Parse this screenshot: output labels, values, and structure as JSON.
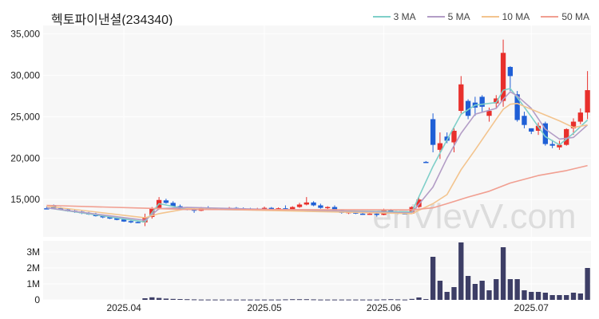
{
  "chart_data": {
    "type": "candlestick",
    "title": "헥토파이낸셜(234340)",
    "watermark": "enVlevV.com",
    "price_axis": {
      "ylim": [
        10500,
        36000
      ],
      "ticks": [
        15000,
        20000,
        25000,
        30000,
        35000
      ],
      "tick_labels": [
        "15,000",
        "20,000",
        "25,000",
        "30,000",
        "35,000"
      ]
    },
    "volume_axis": {
      "ylim": [
        0,
        3700000
      ],
      "ticks": [
        0,
        1000000,
        2000000,
        3000000
      ],
      "tick_labels": [
        "0",
        "1M",
        "2M",
        "3M"
      ]
    },
    "x_labels": [
      {
        "index": 11,
        "label": "2025.04"
      },
      {
        "index": 31,
        "label": "2025.05"
      },
      {
        "index": 48,
        "label": "2025.06"
      },
      {
        "index": 69,
        "label": "2025.07"
      }
    ],
    "legend": [
      {
        "name": "3 MA",
        "color": "#7fcfc9"
      },
      {
        "name": "5 MA",
        "color": "#b39dc6"
      },
      {
        "name": "10 MA",
        "color": "#f3c48e"
      },
      {
        "name": "50 MA",
        "color": "#f19f91"
      }
    ],
    "colors": {
      "up": "#e8302c",
      "down": "#1f5fd6",
      "volume": "#3d3e66",
      "plot_bg": "#f7f7f7",
      "grid": "#ffffff"
    },
    "candles": [
      [
        13950,
        14150,
        13850,
        13900
      ],
      [
        14300,
        14400,
        13900,
        13950
      ],
      [
        13950,
        14100,
        13700,
        13750
      ],
      [
        13800,
        13900,
        13550,
        13600
      ],
      [
        13650,
        13750,
        13400,
        13500
      ],
      [
        13550,
        13650,
        13250,
        13350
      ],
      [
        13400,
        13500,
        13150,
        13200
      ],
      [
        13250,
        13400,
        12950,
        13000
      ],
      [
        13050,
        13150,
        12750,
        12850
      ],
      [
        12900,
        13000,
        12650,
        12700
      ],
      [
        12750,
        12850,
        12500,
        12550
      ],
      [
        12600,
        12700,
        12300,
        12350
      ],
      [
        12400,
        12500,
        12150,
        12250
      ],
      [
        12300,
        12400,
        12150,
        12200
      ],
      [
        12250,
        13300,
        11800,
        12900
      ],
      [
        12900,
        14100,
        12700,
        13900
      ],
      [
        14000,
        15300,
        13800,
        14950
      ],
      [
        14900,
        15100,
        14500,
        14600
      ],
      [
        14600,
        14800,
        14100,
        14200
      ],
      [
        14200,
        14400,
        13800,
        13900
      ],
      [
        13900,
        14100,
        13700,
        13800
      ],
      [
        13800,
        14000,
        13400,
        13650
      ],
      [
        13650,
        14100,
        13600,
        14000
      ],
      [
        14000,
        14200,
        13800,
        13850
      ],
      [
        13850,
        14000,
        13750,
        13900
      ],
      [
        13900,
        14000,
        13750,
        13800
      ],
      [
        13800,
        14100,
        13750,
        14000
      ],
      [
        14000,
        14100,
        13900,
        13950
      ],
      [
        13950,
        14050,
        13850,
        13900
      ],
      [
        13900,
        14000,
        13750,
        13800
      ],
      [
        13800,
        14000,
        13700,
        13900
      ],
      [
        13900,
        14150,
        13800,
        14000
      ],
      [
        14000,
        14100,
        13800,
        13850
      ],
      [
        13850,
        14050,
        13700,
        13950
      ],
      [
        13950,
        14300,
        13600,
        13750
      ],
      [
        13750,
        14200,
        13650,
        14100
      ],
      [
        14100,
        14600,
        14000,
        14400
      ],
      [
        14400,
        15300,
        14300,
        14650
      ],
      [
        14650,
        14800,
        14200,
        14300
      ],
      [
        14300,
        14500,
        13900,
        14000
      ],
      [
        14000,
        14200,
        13850,
        14100
      ],
      [
        14100,
        14300,
        13500,
        13700
      ],
      [
        13700,
        13800,
        13300,
        13400
      ],
      [
        13400,
        13600,
        13250,
        13500
      ],
      [
        13500,
        13600,
        13250,
        13300
      ],
      [
        13300,
        13500,
        13150,
        13250
      ],
      [
        13250,
        13400,
        13150,
        13300
      ],
      [
        13300,
        13350,
        12950,
        13150
      ],
      [
        13150,
        13900,
        13100,
        13800
      ],
      [
        13800,
        13850,
        13400,
        13450
      ],
      [
        13450,
        13550,
        13250,
        13350
      ],
      [
        13350,
        13450,
        13200,
        13300
      ],
      [
        13300,
        14200,
        13250,
        14100
      ],
      [
        14100,
        15400,
        14000,
        15000
      ],
      [
        19550,
        19650,
        19450,
        19500
      ],
      [
        24700,
        25400,
        20700,
        21600
      ],
      [
        21000,
        23100,
        19900,
        21800
      ],
      [
        22600,
        23100,
        21800,
        22100
      ],
      [
        21900,
        23600,
        20700,
        23300
      ],
      [
        25700,
        29900,
        25400,
        28900
      ],
      [
        26900,
        27100,
        24700,
        25100
      ],
      [
        26700,
        27400,
        25100,
        26100
      ],
      [
        27400,
        27600,
        25600,
        26200
      ],
      [
        25100,
        26100,
        24400,
        25700
      ],
      [
        26600,
        27600,
        26100,
        27200
      ],
      [
        26900,
        34300,
        26200,
        32700
      ],
      [
        31000,
        31100,
        28100,
        29900
      ],
      [
        27700,
        28100,
        24400,
        24600
      ],
      [
        25100,
        25600,
        23600,
        24000
      ],
      [
        23600,
        23600,
        22900,
        23200
      ],
      [
        23300,
        24300,
        22800,
        23900
      ],
      [
        24200,
        24400,
        21500,
        21700
      ],
      [
        21700,
        22200,
        21200,
        21500
      ],
      [
        21300,
        22100,
        21000,
        21600
      ],
      [
        21600,
        23600,
        21500,
        23500
      ],
      [
        23600,
        24800,
        22800,
        24400
      ],
      [
        24400,
        26000,
        24100,
        25500
      ],
      [
        25500,
        30500,
        24700,
        28200
      ]
    ],
    "volume": [
      0,
      0,
      0,
      0,
      0,
      0,
      0,
      0,
      0,
      0,
      0,
      0,
      0,
      0,
      100000,
      160000,
      120000,
      80000,
      60000,
      50000,
      40000,
      30000,
      20000,
      20000,
      20000,
      20000,
      20000,
      20000,
      20000,
      20000,
      20000,
      20000,
      20000,
      20000,
      30000,
      40000,
      40000,
      40000,
      30000,
      20000,
      20000,
      20000,
      20000,
      20000,
      20000,
      20000,
      20000,
      20000,
      30000,
      40000,
      30000,
      20000,
      60000,
      150000,
      50000,
      2700000,
      1200000,
      500000,
      800000,
      3600000,
      1500000,
      1000000,
      1200000,
      600000,
      1300000,
      3300000,
      1300000,
      1300000,
      600000,
      500000,
      500000,
      450000,
      300000,
      300000,
      300000,
      450000,
      400000,
      2000000
    ],
    "ma": {
      "3 MA": [
        [
          0,
          14000
        ],
        [
          14,
          12300
        ],
        [
          16,
          14500
        ],
        [
          20,
          13850
        ],
        [
          52,
          13500
        ],
        [
          55,
          19000
        ],
        [
          57,
          22200
        ],
        [
          59,
          25300
        ],
        [
          61,
          26400
        ],
        [
          64,
          26700
        ],
        [
          65,
          28200
        ],
        [
          66,
          28400
        ],
        [
          67,
          27300
        ],
        [
          69,
          25000
        ],
        [
          71,
          22600
        ],
        [
          73,
          21600
        ],
        [
          75,
          23000
        ],
        [
          77,
          24600
        ]
      ],
      "5 MA": [
        [
          0,
          14000
        ],
        [
          14,
          12500
        ],
        [
          16,
          13900
        ],
        [
          20,
          14050
        ],
        [
          52,
          13400
        ],
        [
          55,
          16500
        ],
        [
          57,
          20000
        ],
        [
          59,
          23000
        ],
        [
          61,
          25300
        ],
        [
          64,
          26000
        ],
        [
          65,
          27100
        ],
        [
          66,
          28000
        ],
        [
          67,
          27500
        ],
        [
          69,
          26000
        ],
        [
          71,
          23500
        ],
        [
          73,
          22300
        ],
        [
          75,
          22500
        ],
        [
          77,
          24000
        ]
      ],
      "10 MA": [
        [
          0,
          14200
        ],
        [
          14,
          12800
        ],
        [
          16,
          13300
        ],
        [
          20,
          13900
        ],
        [
          52,
          13300
        ],
        [
          55,
          14500
        ],
        [
          57,
          15600
        ],
        [
          59,
          18600
        ],
        [
          61,
          21000
        ],
        [
          64,
          24700
        ],
        [
          65,
          25900
        ],
        [
          66,
          26500
        ],
        [
          67,
          26600
        ],
        [
          69,
          25900
        ],
        [
          71,
          25200
        ],
        [
          73,
          24500
        ],
        [
          75,
          23700
        ],
        [
          77,
          24000
        ]
      ],
      "50 MA": [
        [
          0,
          14300
        ],
        [
          14,
          13950
        ],
        [
          20,
          13800
        ],
        [
          52,
          13750
        ],
        [
          55,
          14000
        ],
        [
          57,
          14500
        ],
        [
          60,
          15300
        ],
        [
          63,
          16000
        ],
        [
          66,
          17000
        ],
        [
          70,
          17900
        ],
        [
          74,
          18500
        ],
        [
          77,
          19100
        ]
      ]
    }
  }
}
